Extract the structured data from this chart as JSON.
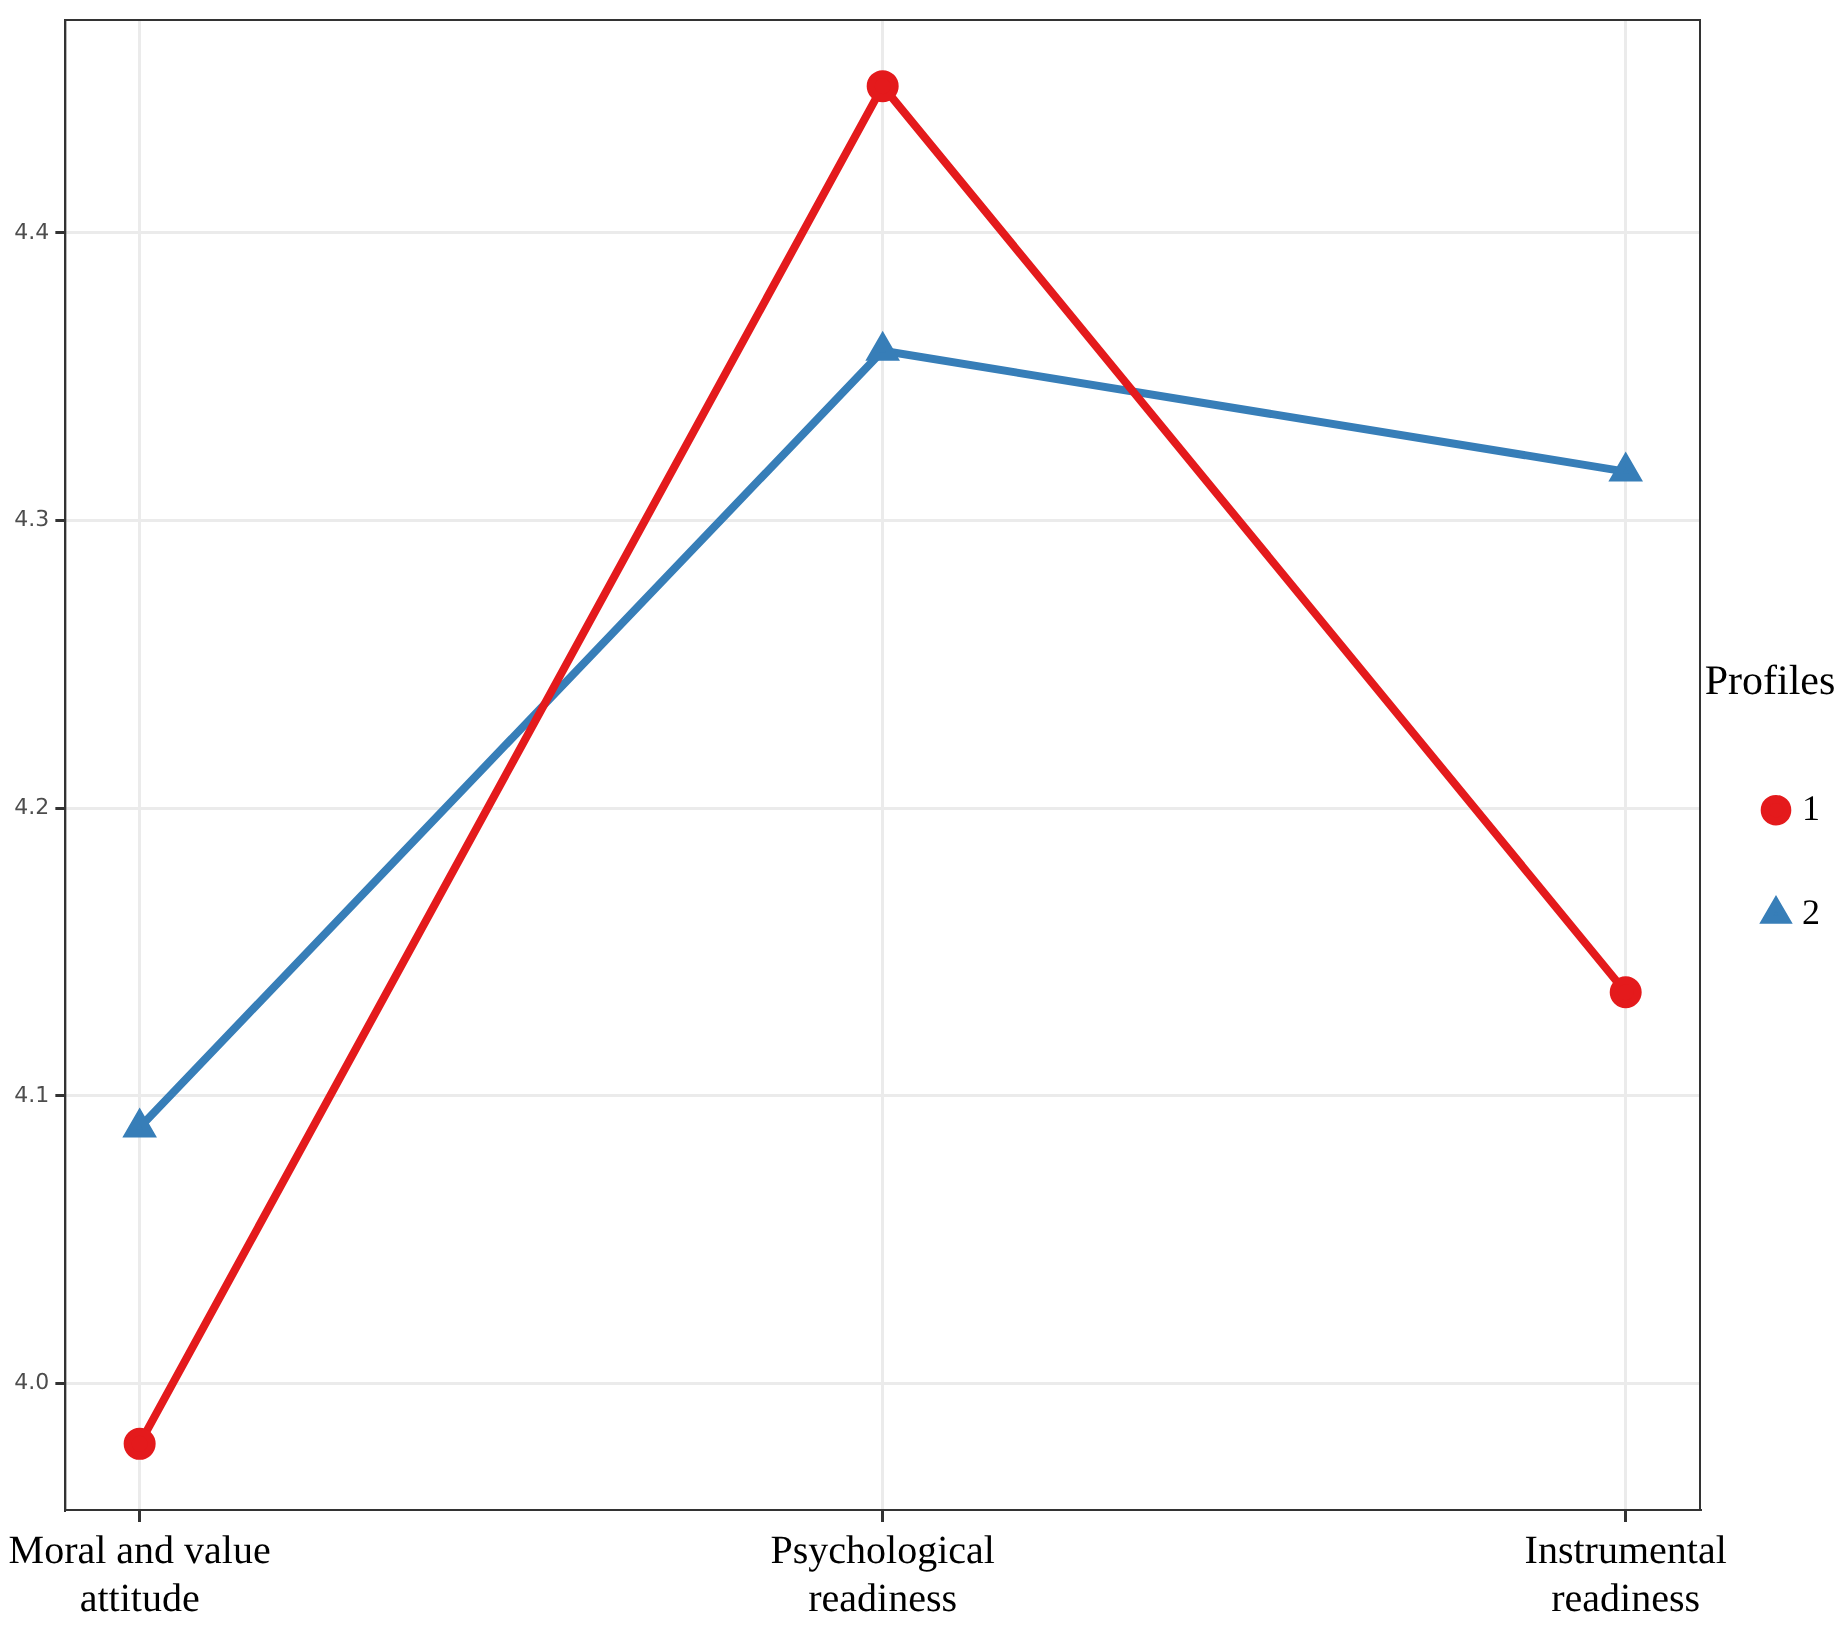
{
  "chart_data": {
    "type": "line",
    "categories": [
      "Moral and value attitude",
      "Psychological readiness",
      "Instrumental readiness"
    ],
    "series": [
      {
        "name": "1",
        "color": "#e41a1c",
        "marker": "circle",
        "values": [
          3.979,
          4.451,
          4.136
        ]
      },
      {
        "name": "2",
        "color": "#377eb8",
        "marker": "triangle",
        "values": [
          4.089,
          4.359,
          4.317
        ]
      }
    ],
    "ylim": [
      3.956,
      4.474
    ],
    "yticks": [
      {
        "value": 4.0,
        "label": "4.0"
      },
      4.1,
      4.2,
      4.3,
      4.4
    ],
    "grid": true,
    "legend": "right",
    "legend_title": "Profiles",
    "line_style": "solid"
  }
}
